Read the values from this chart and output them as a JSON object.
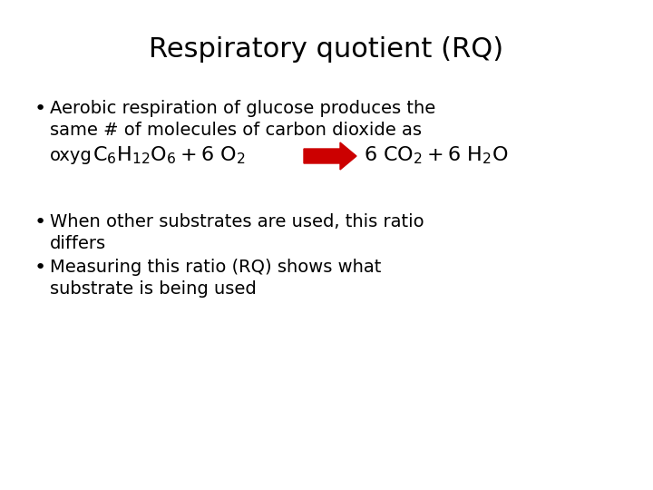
{
  "title": "Respiratory quotient (RQ)",
  "title_fontsize": 22,
  "background_color": "#ffffff",
  "text_color": "#000000",
  "bullet1_line1": "Aerobic respiration of glucose produces the",
  "bullet1_line2": "same # of molecules of carbon dioxide as",
  "bullet1_line3_prefix": "oxyg",
  "bullet2_line1": "When other substrates are used, this ratio",
  "bullet2_line2": "differs",
  "bullet3_line1": "Measuring this ratio (RQ) shows what",
  "bullet3_line2": "substrate is being used",
  "equation_fontsize": 16,
  "body_fontsize": 14,
  "arrow_color": "#cc0000"
}
